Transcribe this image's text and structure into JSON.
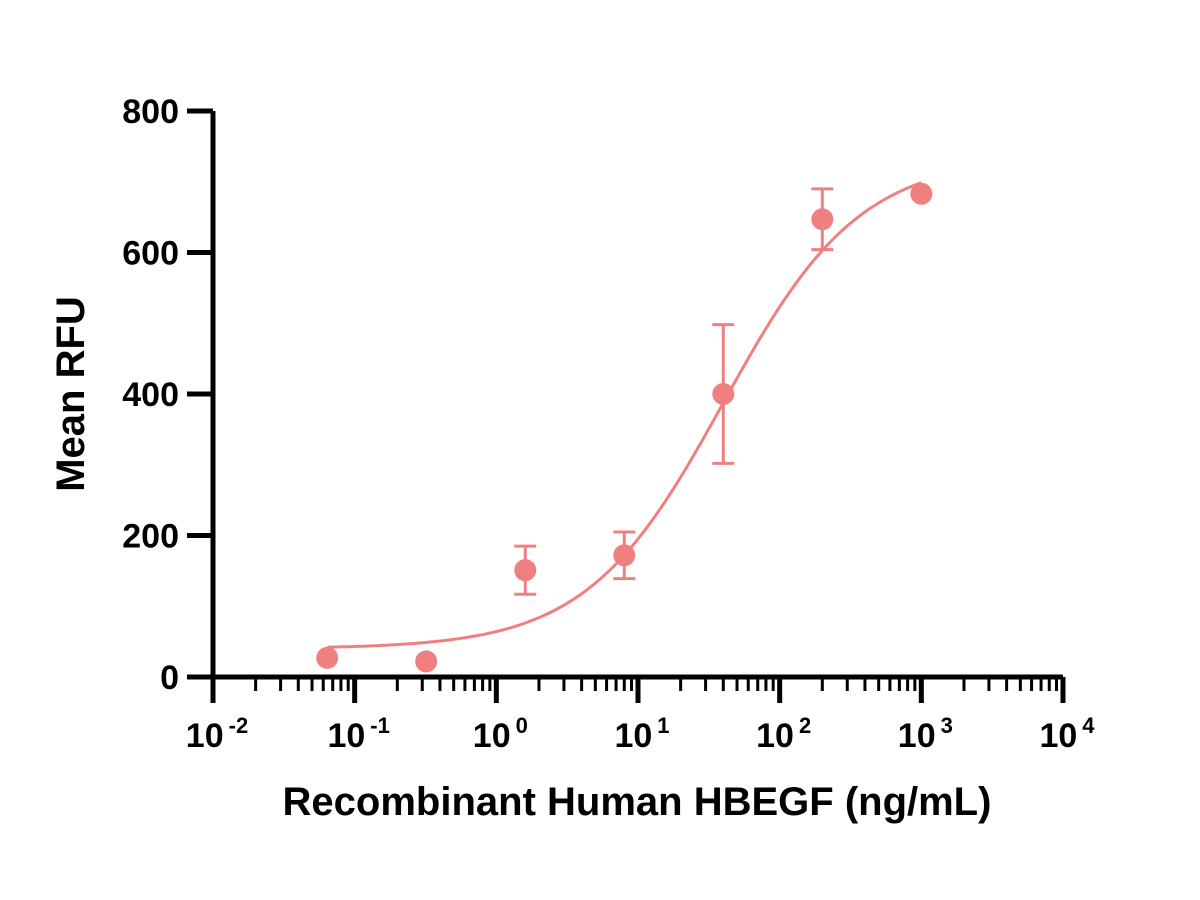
{
  "chart_data": {
    "type": "scatter",
    "title": "",
    "xlabel": "Recombinant Human HBEGF (ng/mL)",
    "ylabel": "Mean RFU",
    "x_scale": "log",
    "xlim": [
      0.01,
      10000
    ],
    "ylim": [
      0,
      800
    ],
    "x_ticks": [
      {
        "base": "10",
        "power": "-2"
      },
      {
        "base": "10",
        "power": "-1"
      },
      {
        "base": "10",
        "power": "0"
      },
      {
        "base": "10",
        "power": "1"
      },
      {
        "base": "10",
        "power": "2"
      },
      {
        "base": "10",
        "power": "3"
      },
      {
        "base": "10",
        "power": "4"
      }
    ],
    "y_ticks": [
      "0",
      "200",
      "400",
      "600",
      "800"
    ],
    "y_tick_values": [
      0,
      200,
      400,
      600,
      800
    ],
    "grid": false,
    "legend": "none",
    "color": "#f08080",
    "series": [
      {
        "points": [
          {
            "x": 0.064,
            "y": 27,
            "err": 0
          },
          {
            "x": 0.32,
            "y": 22,
            "err": 0
          },
          {
            "x": 1.6,
            "y": 151,
            "err": 34
          },
          {
            "x": 8,
            "y": 172,
            "err": 33
          },
          {
            "x": 40,
            "y": 400,
            "err": 98
          },
          {
            "x": 200,
            "y": 647,
            "err": 43
          },
          {
            "x": 1000,
            "y": 683,
            "err": 0
          }
        ],
        "fit_curve": {
          "model": "four-parameter logistic",
          "bottom": 40,
          "top": 735,
          "ec50": 40,
          "hill_slope": 0.9,
          "x_range": [
            0.064,
            1000
          ]
        }
      }
    ]
  }
}
